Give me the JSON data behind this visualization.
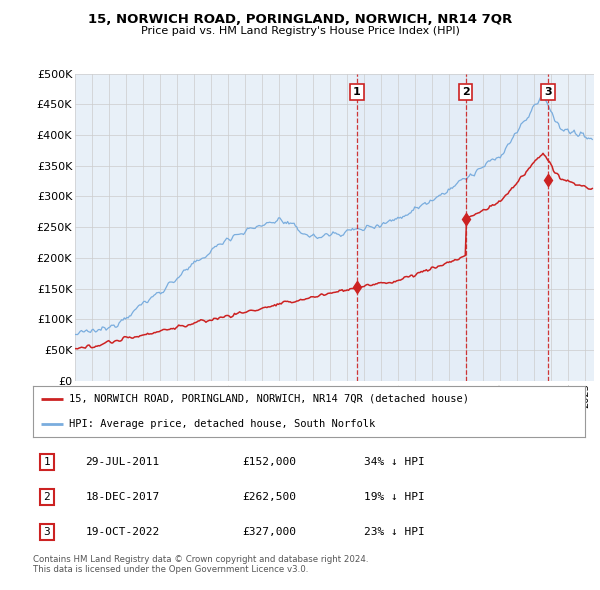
{
  "title": "15, NORWICH ROAD, PORINGLAND, NORWICH, NR14 7QR",
  "subtitle": "Price paid vs. HM Land Registry's House Price Index (HPI)",
  "ylim": [
    0,
    500000
  ],
  "yticks": [
    0,
    50000,
    100000,
    150000,
    200000,
    250000,
    300000,
    350000,
    400000,
    450000,
    500000
  ],
  "ytick_labels": [
    "£0",
    "£50K",
    "£100K",
    "£150K",
    "£200K",
    "£250K",
    "£300K",
    "£350K",
    "£400K",
    "£450K",
    "£500K"
  ],
  "xlim": [
    1995,
    2025.5
  ],
  "transactions": [
    {
      "date_num": 2011.57,
      "price": 152000,
      "label": "1"
    },
    {
      "date_num": 2017.96,
      "price": 262500,
      "label": "2"
    },
    {
      "date_num": 2022.8,
      "price": 327000,
      "label": "3"
    }
  ],
  "vline_dates": [
    2011.57,
    2017.96,
    2022.8
  ],
  "legend_line1": "15, NORWICH ROAD, PORINGLAND, NORWICH, NR14 7QR (detached house)",
  "legend_line2": "HPI: Average price, detached house, South Norfolk",
  "table_rows": [
    {
      "num": "1",
      "date": "29-JUL-2011",
      "price": "£152,000",
      "pct": "34% ↓ HPI"
    },
    {
      "num": "2",
      "date": "18-DEC-2017",
      "price": "£262,500",
      "pct": "19% ↓ HPI"
    },
    {
      "num": "3",
      "date": "19-OCT-2022",
      "price": "£327,000",
      "pct": "23% ↓ HPI"
    }
  ],
  "footer": "Contains HM Land Registry data © Crown copyright and database right 2024.\nThis data is licensed under the Open Government Licence v3.0.",
  "hpi_color": "#7aadde",
  "price_color": "#cc2222",
  "vline_color": "#cc2222",
  "background_color": "#e8f0f8",
  "shade_color": "#dce8f5"
}
